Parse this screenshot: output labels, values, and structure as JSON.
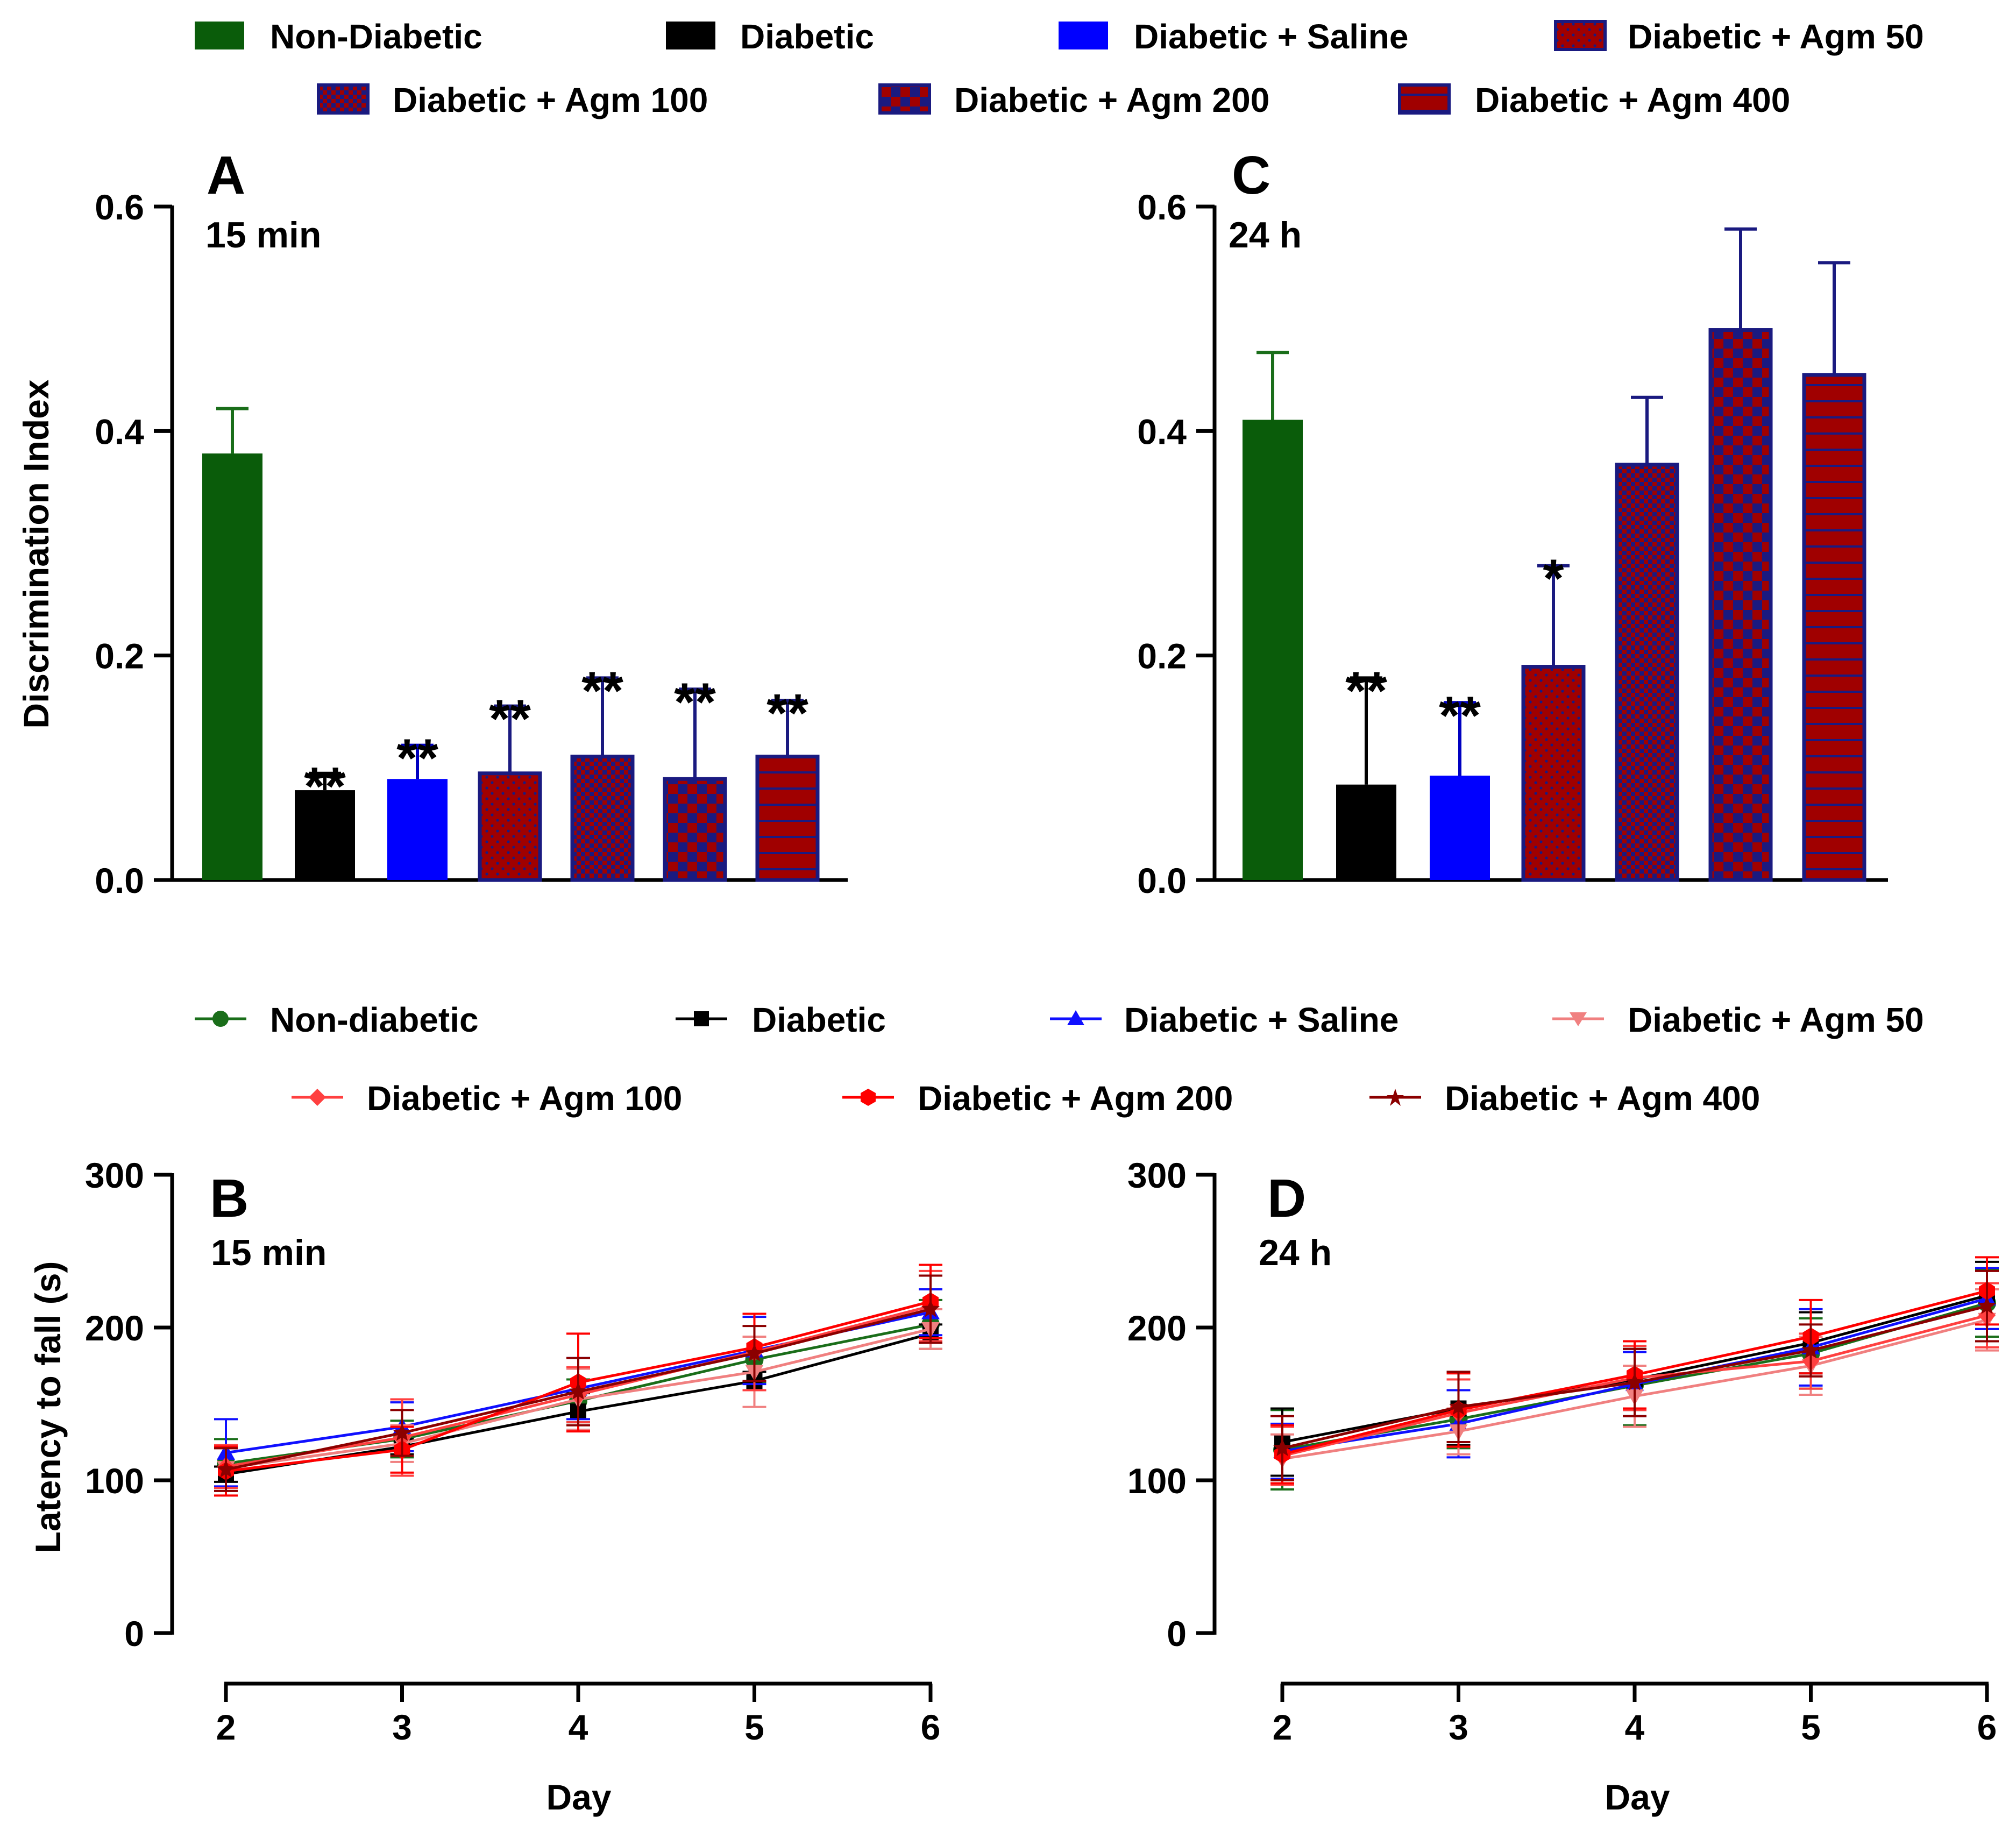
{
  "bar_legend": [
    {
      "label": "Non-Diabetic",
      "pattern": "solid-green"
    },
    {
      "label": "Diabetic",
      "pattern": "solid-black"
    },
    {
      "label": "Diabetic + Saline",
      "pattern": "solid-blue"
    },
    {
      "label": "Diabetic + Agm 50",
      "pattern": "dots"
    },
    {
      "label": "Diabetic + Agm 100",
      "pattern": "fine-checker"
    },
    {
      "label": "Diabetic + Agm 200",
      "pattern": "checker"
    },
    {
      "label": "Diabetic + Agm 400",
      "pattern": "stripes"
    }
  ],
  "line_legend": [
    {
      "label": "Non-diabetic",
      "color": "#1a6e1a",
      "marker": "circle"
    },
    {
      "label": "Diabetic",
      "color": "#000000",
      "marker": "square"
    },
    {
      "label": "Diabetic + Saline",
      "color": "#1010ff",
      "marker": "triangle-up"
    },
    {
      "label": "Diabetic + Agm 50",
      "color": "#f08080",
      "marker": "triangle-down"
    },
    {
      "label": "Diabetic + Agm 100",
      "color": "#ff4040",
      "marker": "diamond"
    },
    {
      "label": "Diabetic + Agm 200",
      "color": "#ff0000",
      "marker": "hexagon"
    },
    {
      "label": "Diabetic + Agm 400",
      "color": "#8b0000",
      "marker": "star"
    }
  ],
  "colors": {
    "green": "#0a5c0a",
    "black": "#000000",
    "blue": "#0000ff",
    "pattern_red": "#a00000",
    "pattern_navy": "#1a1a80",
    "err_green": "#1a6e1a",
    "err_black": "#000000",
    "err_blue": "#0000c0",
    "err_navy": "#1a1a80"
  },
  "chart_data": [
    {
      "panel": "A",
      "type": "bar",
      "subtitle": "15 min",
      "ylabel": "Discrimination Index",
      "xlabel": "",
      "ylim": [
        0,
        0.6
      ],
      "yticks": [
        "0.0",
        "0.2",
        "0.4",
        "0.6"
      ],
      "ytick_values": [
        0,
        0.2,
        0.4,
        0.6
      ],
      "categories": [
        "Non-Diabetic",
        "Diabetic",
        "Diabetic + Saline",
        "Diabetic + Agm 50",
        "Diabetic + Agm 100",
        "Diabetic + Agm 200",
        "Diabetic + Agm 400"
      ],
      "values": [
        0.38,
        0.08,
        0.09,
        0.095,
        0.11,
        0.09,
        0.11
      ],
      "errors": [
        0.04,
        0.015,
        0.03,
        0.06,
        0.07,
        0.08,
        0.05
      ],
      "significance": [
        "",
        "**",
        "**",
        "**",
        "**",
        "**",
        "**"
      ]
    },
    {
      "panel": "C",
      "type": "bar",
      "subtitle": "24 h",
      "ylabel": "",
      "xlabel": "",
      "ylim": [
        0,
        0.6
      ],
      "yticks": [
        "0.0",
        "0.2",
        "0.4",
        "0.6"
      ],
      "ytick_values": [
        0,
        0.2,
        0.4,
        0.6
      ],
      "categories": [
        "Non-Diabetic",
        "Diabetic",
        "Diabetic + Saline",
        "Diabetic + Agm 50",
        "Diabetic + Agm 100",
        "Diabetic + Agm 200",
        "Diabetic + Agm 400"
      ],
      "values": [
        0.41,
        0.085,
        0.093,
        0.19,
        0.37,
        0.49,
        0.45
      ],
      "errors": [
        0.06,
        0.095,
        0.065,
        0.09,
        0.06,
        0.09,
        0.1
      ],
      "significance": [
        "",
        "**",
        "**",
        "*",
        "",
        "",
        ""
      ]
    },
    {
      "panel": "B",
      "type": "line",
      "subtitle": "15 min",
      "ylabel": "Latency to fall (s)",
      "xlabel": "Day",
      "x": [
        2,
        3,
        4,
        5,
        6
      ],
      "xticks": [
        "2",
        "3",
        "4",
        "5",
        "6"
      ],
      "ylim": [
        0,
        300
      ],
      "yticks": [
        "0",
        "100",
        "200",
        "300"
      ],
      "ytick_values": [
        0,
        100,
        200,
        300
      ],
      "series": [
        {
          "name": "Non-diabetic",
          "values": [
            111,
            127,
            152,
            179,
            202
          ],
          "errors": [
            16,
            12,
            14,
            15,
            16
          ]
        },
        {
          "name": "Diabetic",
          "values": [
            104,
            122,
            145,
            165,
            196
          ],
          "errors": [
            5,
            5,
            12,
            6,
            6
          ]
        },
        {
          "name": "Diabetic + Saline",
          "values": [
            118,
            135,
            160,
            185,
            210
          ],
          "errors": [
            22,
            16,
            20,
            22,
            15
          ]
        },
        {
          "name": "Diabetic + Agm 50",
          "values": [
            108,
            124,
            153,
            171,
            199
          ],
          "errors": [
            13,
            12,
            20,
            23,
            13
          ]
        },
        {
          "name": "Diabetic + Agm 100",
          "values": [
            109,
            128,
            156,
            184,
            214
          ],
          "errors": [
            14,
            25,
            18,
            25,
            23
          ]
        },
        {
          "name": "Diabetic + Agm 200",
          "values": [
            106,
            120,
            164,
            187,
            217
          ],
          "errors": [
            16,
            15,
            32,
            22,
            24
          ]
        },
        {
          "name": "Diabetic + Agm 400",
          "values": [
            107,
            131,
            158,
            183,
            212
          ],
          "errors": [
            14,
            15,
            22,
            18,
            22
          ]
        }
      ]
    },
    {
      "panel": "D",
      "type": "line",
      "subtitle": "24 h",
      "ylabel": "",
      "xlabel": "Day",
      "x": [
        2,
        3,
        4,
        5,
        6
      ],
      "xticks": [
        "2",
        "3",
        "4",
        "5",
        "6"
      ],
      "ylim": [
        0,
        300
      ],
      "yticks": [
        "0",
        "100",
        "200",
        "300"
      ],
      "ytick_values": [
        0,
        100,
        200,
        300
      ],
      "series": [
        {
          "name": "Non-diabetic",
          "values": [
            120,
            140,
            162,
            183,
            216
          ],
          "errors": [
            26,
            19,
            26,
            23,
            22
          ]
        },
        {
          "name": "Diabetic",
          "values": [
            125,
            147,
            166,
            190,
            221
          ],
          "errors": [
            22,
            24,
            20,
            20,
            22
          ]
        },
        {
          "name": "Diabetic + Saline",
          "values": [
            119,
            137,
            163,
            187,
            219
          ],
          "errors": [
            18,
            22,
            21,
            25,
            20
          ]
        },
        {
          "name": "Diabetic + Agm 50",
          "values": [
            114,
            132,
            155,
            175,
            205
          ],
          "errors": [
            16,
            15,
            20,
            19,
            20
          ]
        },
        {
          "name": "Diabetic + Agm 100",
          "values": [
            116,
            144,
            167,
            178,
            208
          ],
          "errors": [
            19,
            22,
            21,
            18,
            21
          ]
        },
        {
          "name": "Diabetic + Agm 200",
          "values": [
            117,
            146,
            169,
            194,
            224
          ],
          "errors": [
            19,
            24,
            22,
            24,
            22
          ]
        },
        {
          "name": "Diabetic + Agm 400",
          "values": [
            121,
            148,
            164,
            185,
            214
          ],
          "errors": [
            21,
            23,
            22,
            17,
            23
          ]
        }
      ]
    }
  ]
}
